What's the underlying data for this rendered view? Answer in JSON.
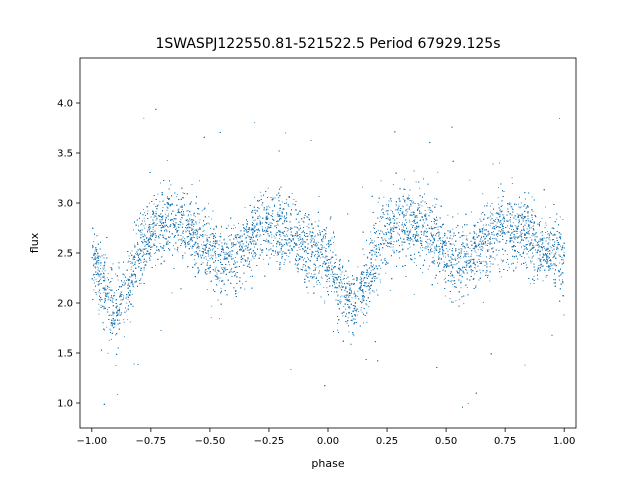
{
  "chart_data": {
    "type": "scatter",
    "title": "1SWASPJ122550.81-521522.5 Period 67929.125s",
    "xlabel": "phase",
    "ylabel": "flux",
    "xlim": [
      -1.05,
      1.05
    ],
    "ylim": [
      0.75,
      4.45
    ],
    "xticks": [
      -1.0,
      -0.75,
      -0.5,
      -0.25,
      0.0,
      0.25,
      0.5,
      0.75,
      1.0
    ],
    "xtick_labels": [
      "−1.00",
      "−0.75",
      "−0.50",
      "−0.25",
      "0.00",
      "0.25",
      "0.50",
      "0.75",
      "1.00"
    ],
    "yticks": [
      1.0,
      1.5,
      2.0,
      2.5,
      3.0,
      3.5,
      4.0
    ],
    "ytick_labels": [
      "1.0",
      "1.5",
      "2.0",
      "2.5",
      "3.0",
      "3.5",
      "4.0"
    ],
    "grid": false,
    "marker_color": "#1f77b4",
    "trend_phase": [
      0.0,
      0.05,
      0.1,
      0.15,
      0.2,
      0.25,
      0.3,
      0.35,
      0.4,
      0.45,
      0.5,
      0.55,
      0.6,
      0.65,
      0.7,
      0.75,
      0.8,
      0.85,
      0.9,
      0.95,
      1.0
    ],
    "trend_flux": [
      2.45,
      2.15,
      1.95,
      2.15,
      2.5,
      2.72,
      2.8,
      2.82,
      2.78,
      2.65,
      2.5,
      2.42,
      2.45,
      2.58,
      2.7,
      2.75,
      2.72,
      2.65,
      2.55,
      2.5,
      2.45
    ],
    "scatter_sigma": 0.18,
    "point_count": 16000
  }
}
